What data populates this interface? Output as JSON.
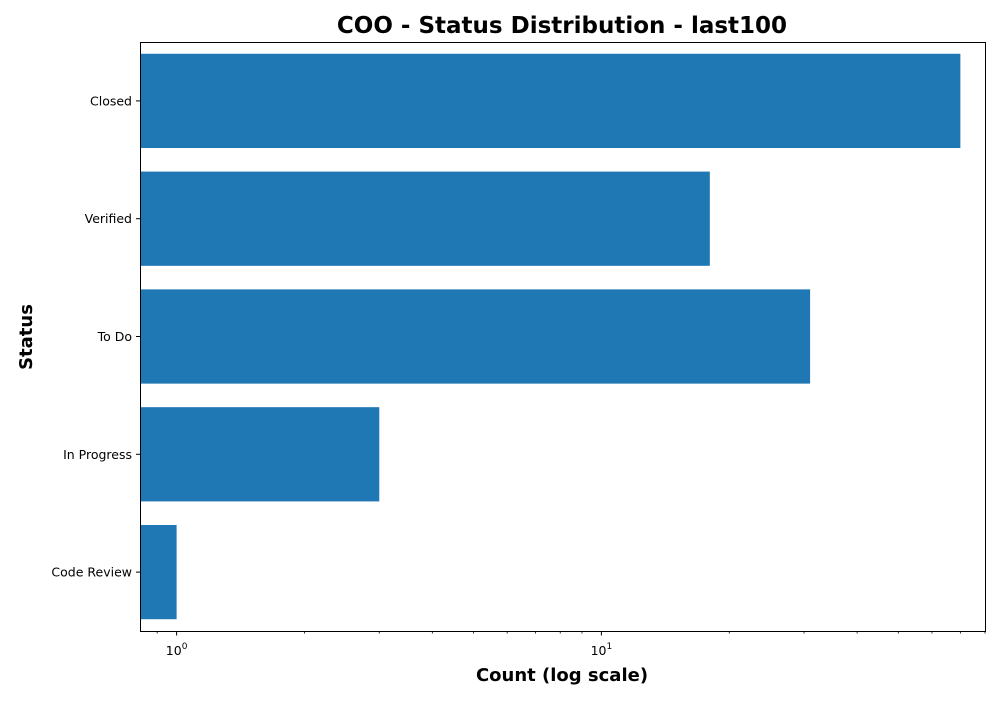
{
  "chart_data": {
    "type": "bar",
    "orientation": "horizontal",
    "title": "COO - Status Distribution - last100",
    "xlabel": "Count (log scale)",
    "ylabel": "Status",
    "x_scale": "log",
    "categories": [
      "Closed",
      "Verified",
      "To Do",
      "In Progress",
      "Code Review"
    ],
    "values": [
      70,
      18,
      31,
      3,
      1
    ],
    "xlim": [
      0.82,
      80
    ],
    "x_major_ticks": [
      {
        "value": 1,
        "base": "10",
        "exponent": "0"
      },
      {
        "value": 10,
        "base": "10",
        "exponent": "1"
      }
    ],
    "grid": false,
    "legend": "none",
    "bar_color": "#1f77b4"
  }
}
